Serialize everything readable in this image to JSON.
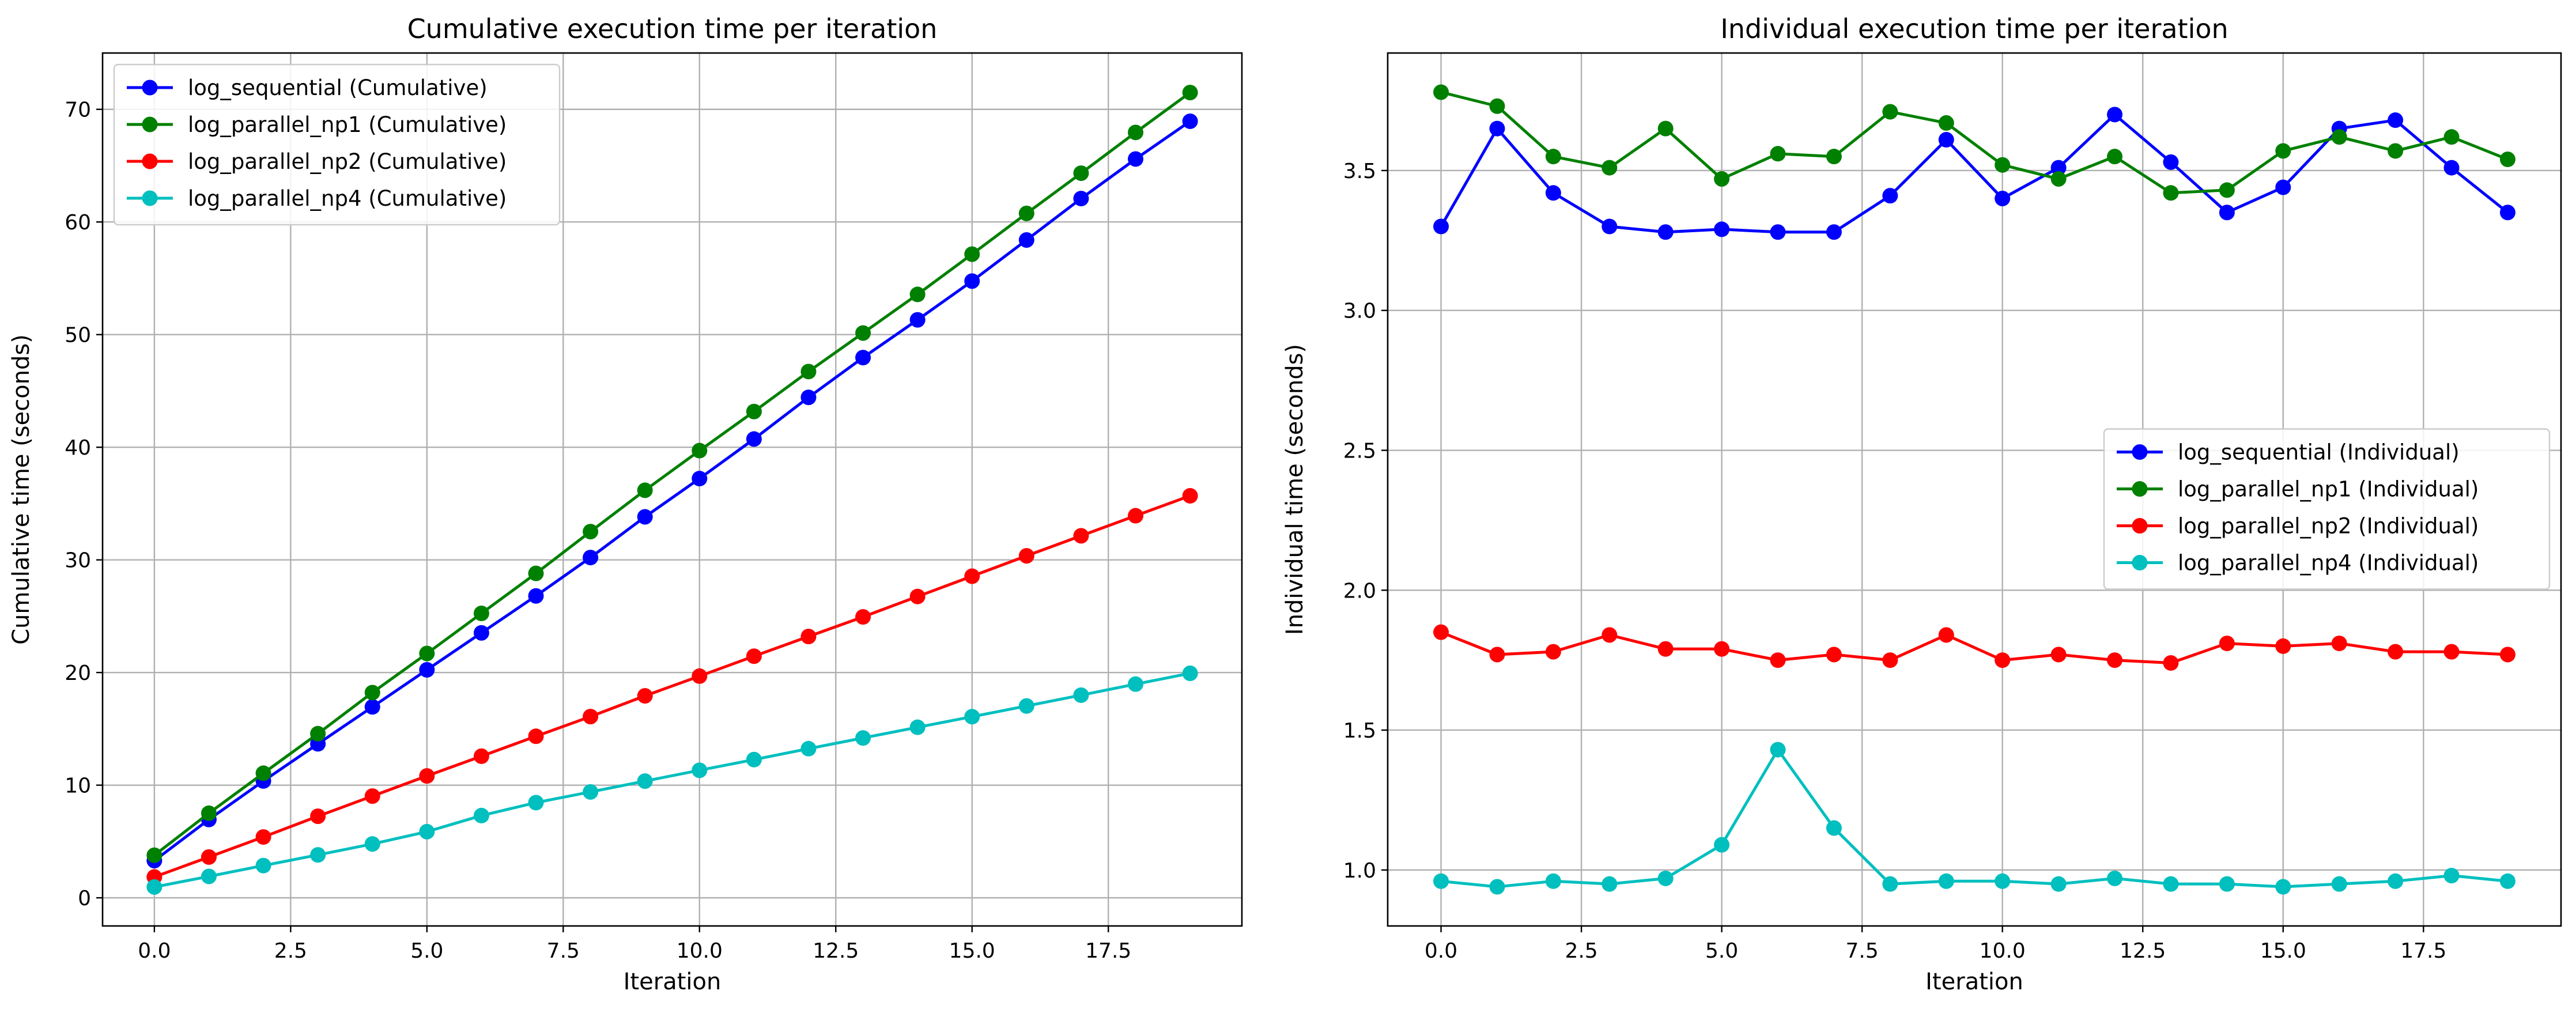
{
  "chart_data": [
    {
      "type": "line",
      "title": "Cumulative execution time per iteration",
      "xlabel": "Iteration",
      "ylabel": "Cumulative time (seconds)",
      "xlim": [
        -0.95,
        19.95
      ],
      "ylim": [
        -2.5,
        75.0
      ],
      "xticks": [
        0.0,
        2.5,
        5.0,
        7.5,
        10.0,
        12.5,
        15.0,
        17.5
      ],
      "xtick_labels": [
        "0.0",
        "2.5",
        "5.0",
        "7.5",
        "10.0",
        "12.5",
        "15.0",
        "17.5"
      ],
      "yticks": [
        0,
        10,
        20,
        30,
        40,
        50,
        60,
        70
      ],
      "ytick_labels": [
        "0",
        "10",
        "20",
        "30",
        "40",
        "50",
        "60",
        "70"
      ],
      "grid": true,
      "legend_position": "top-left",
      "x": [
        0,
        1,
        2,
        3,
        4,
        5,
        6,
        7,
        8,
        9,
        10,
        11,
        12,
        13,
        14,
        15,
        16,
        17,
        18,
        19
      ],
      "series": [
        {
          "name": "log_sequential (Cumulative)",
          "color": "#0000ff",
          "values": [
            3.3,
            6.95,
            10.37,
            13.67,
            16.95,
            20.24,
            23.52,
            26.8,
            30.21,
            33.82,
            37.22,
            40.73,
            44.43,
            47.96,
            51.31,
            54.75,
            58.4,
            62.08,
            65.59,
            68.94
          ]
        },
        {
          "name": "log_parallel_np1 (Cumulative)",
          "color": "#008000",
          "values": [
            3.78,
            7.51,
            11.06,
            14.57,
            18.22,
            21.69,
            25.25,
            28.8,
            32.51,
            36.18,
            39.7,
            43.17,
            46.72,
            50.14,
            53.57,
            57.14,
            60.76,
            64.33,
            67.95,
            71.49
          ]
        },
        {
          "name": "log_parallel_np2 (Cumulative)",
          "color": "#ff0000",
          "values": [
            1.85,
            3.62,
            5.4,
            7.24,
            9.03,
            10.82,
            12.57,
            14.34,
            16.09,
            17.93,
            19.68,
            21.45,
            23.2,
            24.94,
            26.75,
            28.55,
            30.36,
            32.14,
            33.92,
            35.69
          ]
        },
        {
          "name": "log_parallel_np4 (Cumulative)",
          "color": "#00bfbf",
          "values": [
            0.96,
            1.9,
            2.86,
            3.81,
            4.78,
            5.87,
            7.3,
            8.45,
            9.4,
            10.36,
            11.32,
            12.27,
            13.24,
            14.19,
            15.14,
            16.08,
            17.03,
            17.99,
            18.97,
            19.93
          ]
        }
      ]
    },
    {
      "type": "line",
      "title": "Individual execution time per iteration",
      "xlabel": "Iteration",
      "ylabel": "Individual time (seconds)",
      "xlim": [
        -0.95,
        19.95
      ],
      "ylim": [
        0.8,
        3.92
      ],
      "xticks": [
        0.0,
        2.5,
        5.0,
        7.5,
        10.0,
        12.5,
        15.0,
        17.5
      ],
      "xtick_labels": [
        "0.0",
        "2.5",
        "5.0",
        "7.5",
        "10.0",
        "12.5",
        "15.0",
        "17.5"
      ],
      "yticks": [
        1.0,
        1.5,
        2.0,
        2.5,
        3.0,
        3.5
      ],
      "ytick_labels": [
        "1.0",
        "1.5",
        "2.0",
        "2.5",
        "3.0",
        "3.5"
      ],
      "grid": true,
      "legend_position": "center-right",
      "x": [
        0,
        1,
        2,
        3,
        4,
        5,
        6,
        7,
        8,
        9,
        10,
        11,
        12,
        13,
        14,
        15,
        16,
        17,
        18,
        19
      ],
      "series": [
        {
          "name": "log_sequential (Individual)",
          "color": "#0000ff",
          "values": [
            3.3,
            3.65,
            3.42,
            3.3,
            3.28,
            3.29,
            3.28,
            3.28,
            3.41,
            3.61,
            3.4,
            3.51,
            3.7,
            3.53,
            3.35,
            3.44,
            3.65,
            3.68,
            3.51,
            3.35
          ]
        },
        {
          "name": "log_parallel_np1 (Individual)",
          "color": "#008000",
          "values": [
            3.78,
            3.73,
            3.55,
            3.51,
            3.65,
            3.47,
            3.56,
            3.55,
            3.71,
            3.67,
            3.52,
            3.47,
            3.55,
            3.42,
            3.43,
            3.57,
            3.62,
            3.57,
            3.62,
            3.54
          ]
        },
        {
          "name": "log_parallel_np2 (Individual)",
          "color": "#ff0000",
          "values": [
            1.85,
            1.77,
            1.78,
            1.84,
            1.79,
            1.79,
            1.75,
            1.77,
            1.75,
            1.84,
            1.75,
            1.77,
            1.75,
            1.74,
            1.81,
            1.8,
            1.81,
            1.78,
            1.78,
            1.77
          ]
        },
        {
          "name": "log_parallel_np4 (Individual)",
          "color": "#00bfbf",
          "values": [
            0.96,
            0.94,
            0.96,
            0.95,
            0.97,
            1.09,
            1.43,
            1.15,
            0.95,
            0.96,
            0.96,
            0.95,
            0.97,
            0.95,
            0.95,
            0.94,
            0.95,
            0.96,
            0.98,
            0.96
          ]
        }
      ]
    }
  ]
}
